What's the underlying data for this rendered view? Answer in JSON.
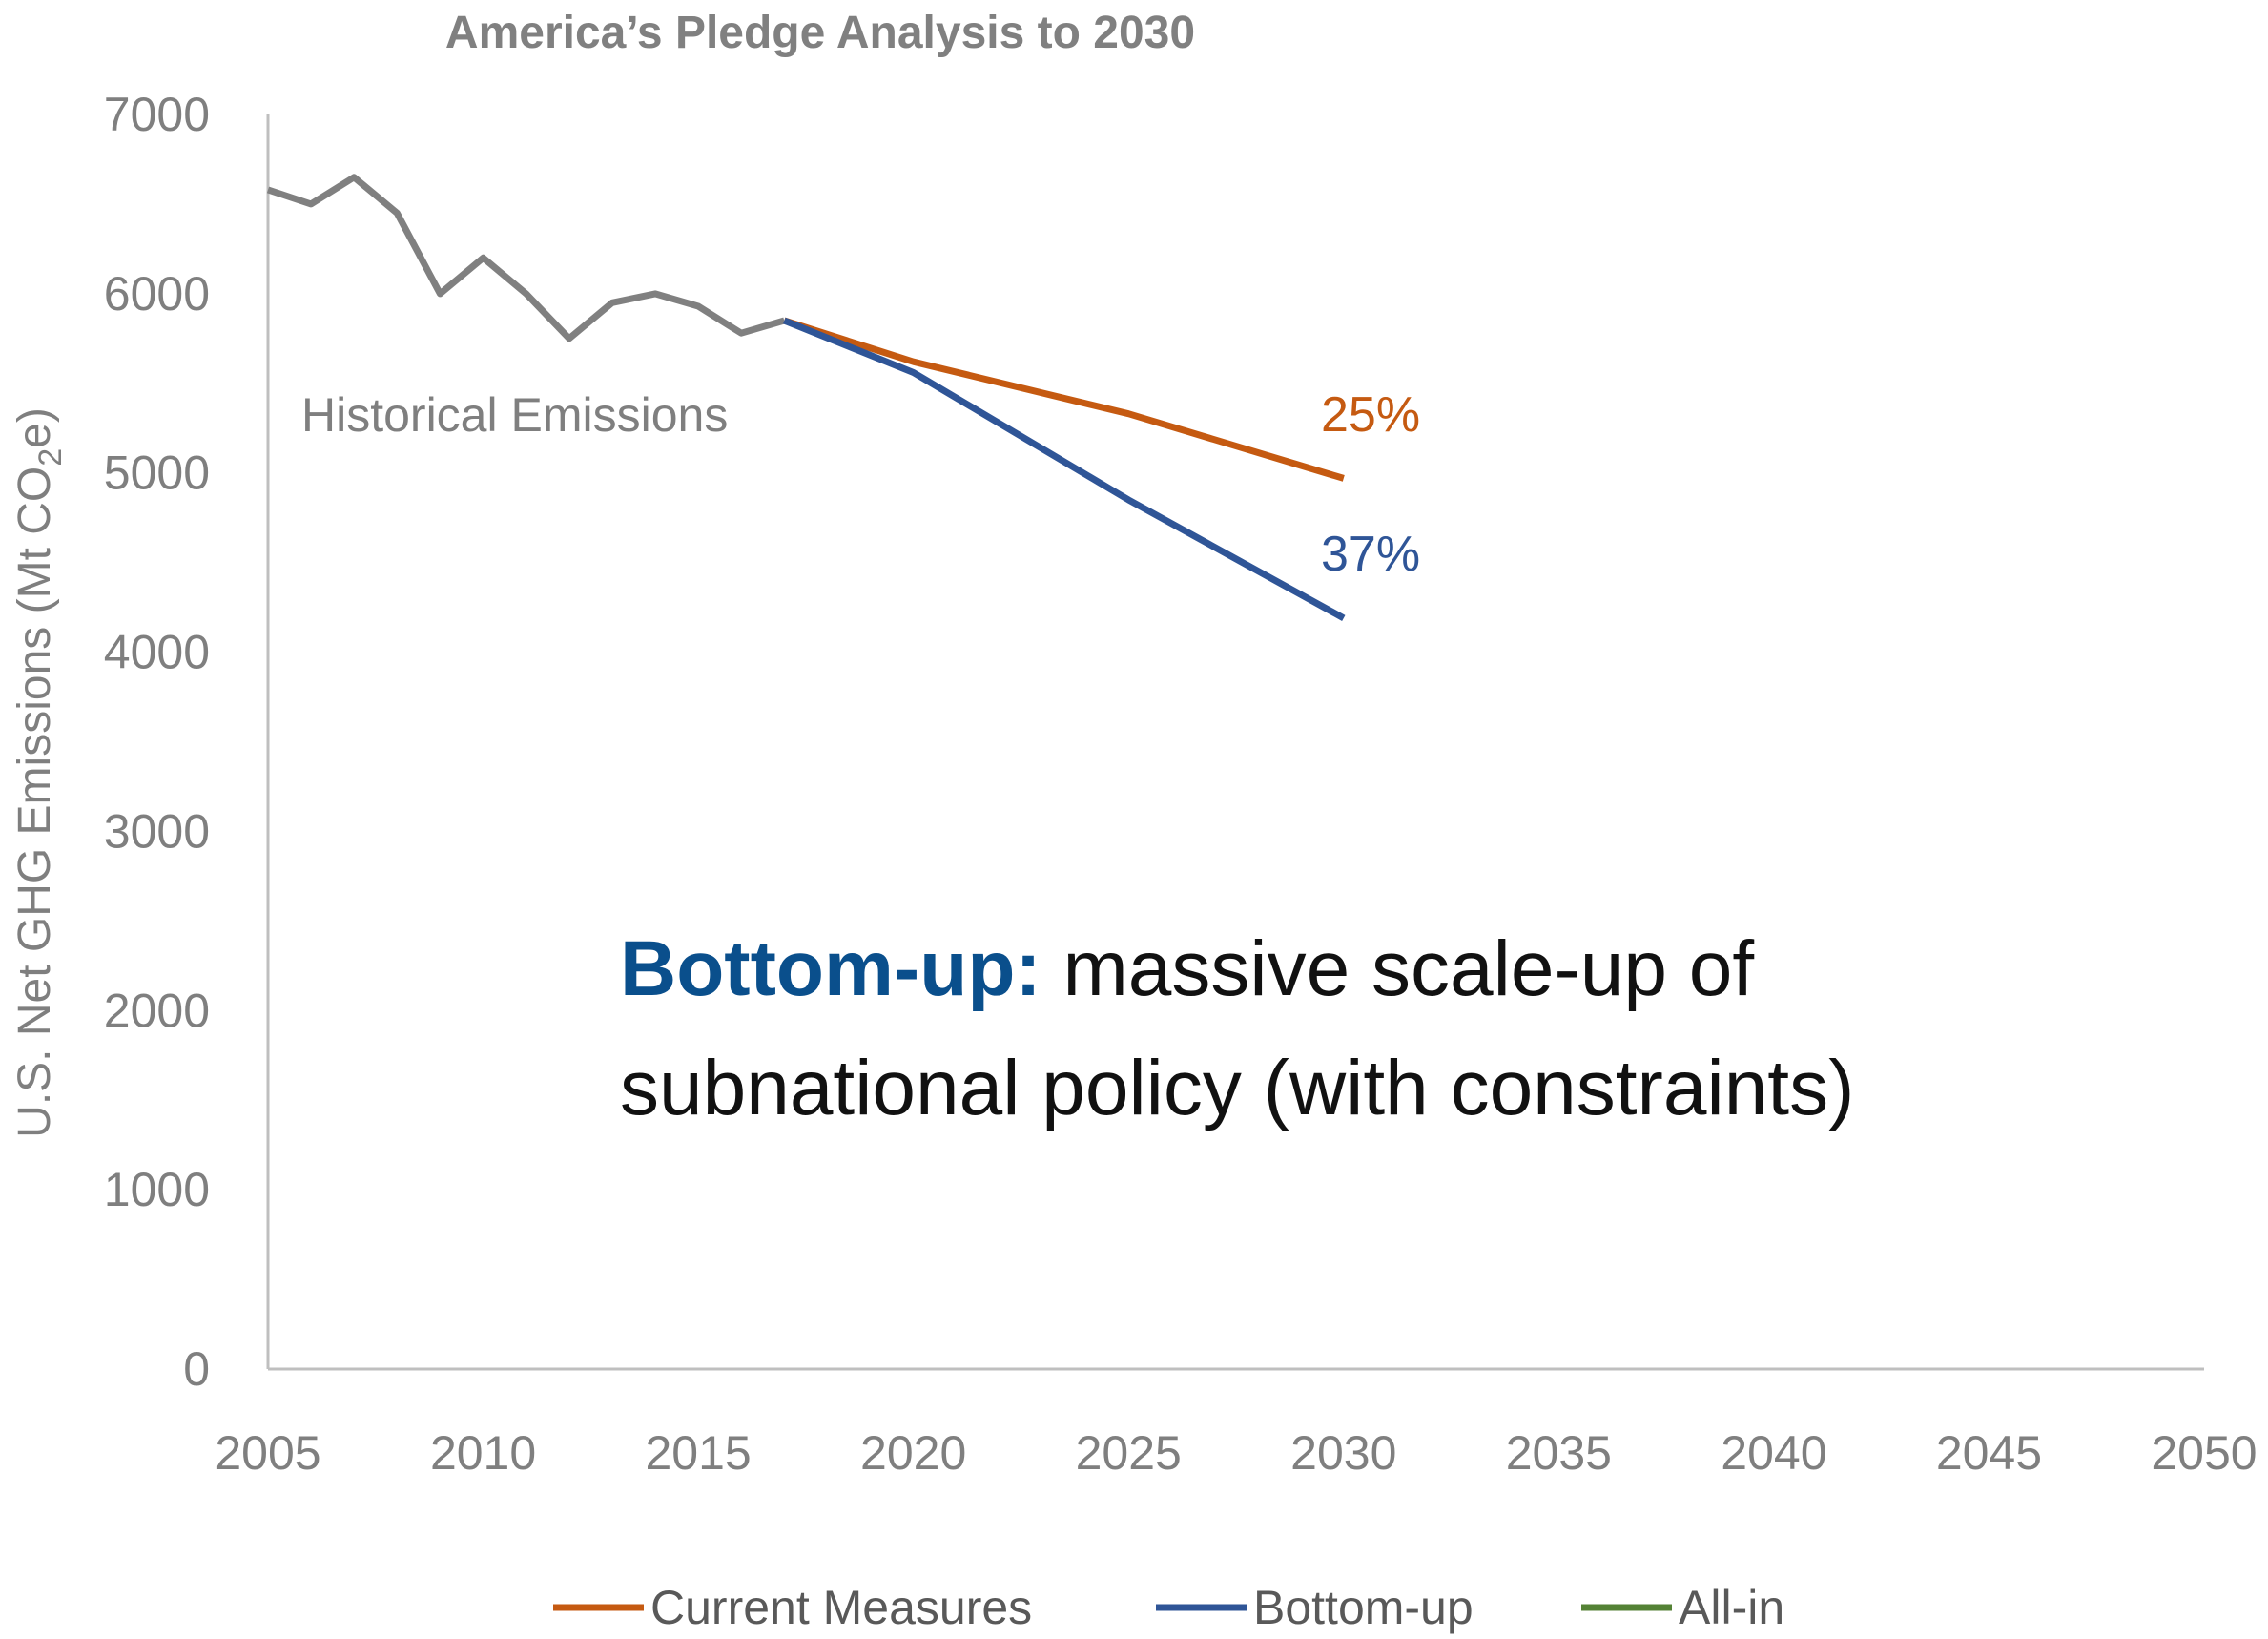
{
  "chart_data": {
    "type": "line",
    "title": "America’s Pledge Analysis to 2030",
    "ylabel": {
      "prefix": "U.S. Net GHG Emissions (Mt CO",
      "subscript": "2",
      "suffix": "e)"
    },
    "xlabel": "",
    "xlim": [
      2005,
      2050
    ],
    "ylim": [
      0,
      7000
    ],
    "x_ticks": [
      2005,
      2010,
      2015,
      2020,
      2025,
      2030,
      2035,
      2040,
      2045,
      2050
    ],
    "y_ticks": [
      0,
      1000,
      2000,
      3000,
      4000,
      5000,
      6000,
      7000
    ],
    "grid": false,
    "legend_position": "bottom",
    "series": [
      {
        "key": "historical",
        "color": "#808080",
        "in_legend": false,
        "points": [
          [
            2005,
            6580
          ],
          [
            2006,
            6500
          ],
          [
            2007,
            6650
          ],
          [
            2008,
            6450
          ],
          [
            2009,
            6000
          ],
          [
            2010,
            6200
          ],
          [
            2011,
            6000
          ],
          [
            2012,
            5750
          ],
          [
            2013,
            5950
          ],
          [
            2014,
            6000
          ],
          [
            2015,
            5930
          ],
          [
            2016,
            5780
          ],
          [
            2017,
            5850
          ]
        ]
      },
      {
        "key": "current_measures",
        "name": "Current Measures",
        "color": "#c55a11",
        "in_legend": true,
        "points": [
          [
            2017,
            5850
          ],
          [
            2020,
            5620
          ],
          [
            2025,
            5330
          ],
          [
            2030,
            4970
          ]
        ]
      },
      {
        "key": "bottom_up",
        "name": "Bottom-up",
        "color": "#2f5597",
        "in_legend": true,
        "points": [
          [
            2017,
            5850
          ],
          [
            2020,
            5560
          ],
          [
            2025,
            4850
          ],
          [
            2030,
            4190
          ]
        ]
      },
      {
        "key": "all_in",
        "name": "All-in",
        "color": "#548235",
        "in_legend": true,
        "points": []
      }
    ],
    "annotations": {
      "historical": "Historical Emissions",
      "current_measures_pct": "25%",
      "bottom_up_pct": "37%"
    },
    "callout": {
      "bold_text": "Bottom-up:",
      "bold_color": "#0a4f8c",
      "line1_rest": " massive scale-up of",
      "line2": "subnational policy (with constraints)"
    }
  }
}
